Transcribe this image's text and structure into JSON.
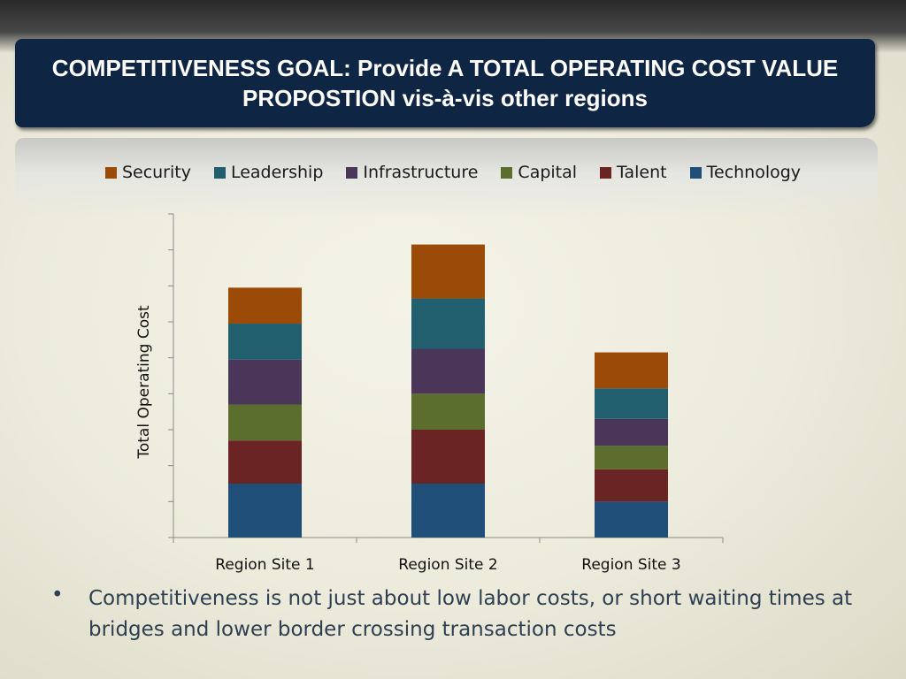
{
  "slide": {
    "title": "COMPETITIVENESS GOAL: Provide A TOTAL OPERATING COST VALUE PROPOSTION vis-à-vis other regions",
    "bullet_marker": "•",
    "bullet_text": "Competitiveness is not just about low labor costs, or short waiting times at bridges and lower border crossing transaction costs"
  },
  "chart_data": {
    "type": "bar",
    "stacked": true,
    "title": "",
    "xlabel": "",
    "ylabel": "Total Operating  Cost",
    "categories": [
      "Region Site 1",
      "Region Site 2",
      "Region Site 3"
    ],
    "ylim": [
      0,
      9
    ],
    "y_tick_labels_shown": false,
    "grid": false,
    "legend_position": "top",
    "series": [
      {
        "name": "Technology",
        "color": "#1f4e79",
        "values": [
          1.5,
          1.5,
          1.0
        ]
      },
      {
        "name": "Talent",
        "color": "#6b2424",
        "values": [
          1.2,
          1.5,
          0.9
        ]
      },
      {
        "name": "Capital",
        "color": "#5b6e2d",
        "values": [
          1.0,
          1.0,
          0.65
        ]
      },
      {
        "name": "Infrastructure",
        "color": "#4a3659",
        "values": [
          1.25,
          1.25,
          0.75
        ]
      },
      {
        "name": "Leadership",
        "color": "#215f6e",
        "values": [
          1.0,
          1.4,
          0.85
        ]
      },
      {
        "name": "Security",
        "color": "#9c4a08",
        "values": [
          1.0,
          1.5,
          1.0
        ]
      }
    ],
    "legend_order": [
      "Security",
      "Leadership",
      "Infrastructure",
      "Capital",
      "Talent",
      "Technology"
    ]
  }
}
